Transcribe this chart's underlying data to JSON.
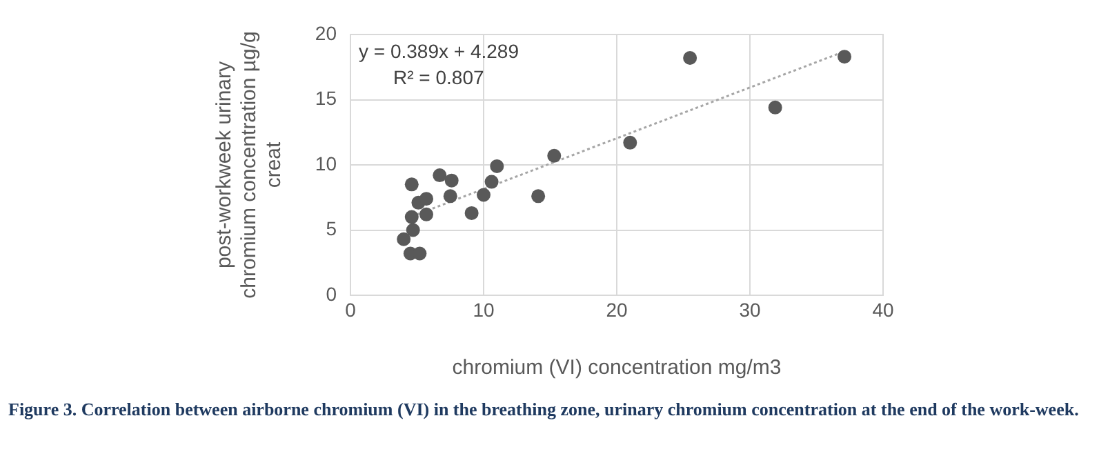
{
  "chart_data": {
    "type": "scatter",
    "xlabel": "chromium (VI) concentration mg/m3",
    "ylabel": "post-workweek urinary\nchromium concentration µg/g\ncreat",
    "xlim": [
      0,
      40
    ],
    "xticks": [
      0,
      10,
      20,
      30,
      40
    ],
    "ylim": [
      0,
      20
    ],
    "yticks": [
      0,
      5,
      10,
      15,
      20
    ],
    "grid": true,
    "marker": "circle",
    "series": [
      {
        "color": "#595959",
        "x": [
          4.6,
          6.7,
          7.6,
          11.0,
          10.6,
          15.3,
          5.1,
          5.7,
          7.5,
          10.0,
          14.1,
          9.1,
          5.7,
          4.6,
          4.7,
          4.0,
          4.5,
          5.2,
          25.5,
          31.9,
          37.1,
          21.0
        ],
        "values": [
          8.5,
          9.2,
          8.8,
          9.9,
          8.7,
          10.7,
          7.1,
          7.4,
          7.6,
          7.7,
          7.6,
          6.3,
          6.2,
          6.0,
          5.0,
          4.3,
          3.2,
          3.2,
          18.2,
          14.4,
          18.3,
          11.7
        ]
      },
      {
        "type": "line",
        "color": "#a6a6a6",
        "line_style": "dotted",
        "marker": "none",
        "x": [
          5.0,
          37.1
        ],
        "values": [
          6.2,
          18.7
        ]
      }
    ],
    "annotations": [
      "y = 0.389x + 4.289",
      "R² = 0.807",
      "Figure 3. Correlation between airborne chromium (VI) in the breathing zone, urinary chromium concentration at the end of the work-week."
    ]
  }
}
